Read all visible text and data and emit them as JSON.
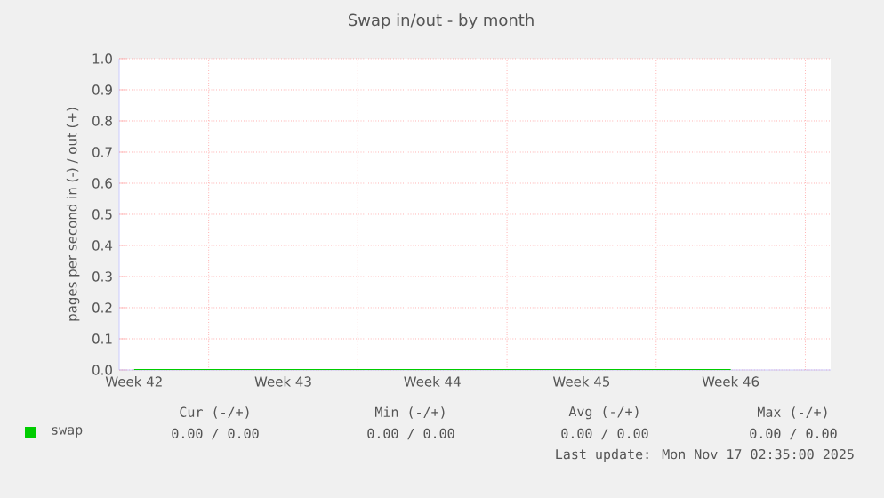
{
  "chart_data": {
    "type": "line",
    "title": "Swap in/out - by month",
    "ylabel": "pages per second in (-) / out (+)",
    "categories": [
      "Week 42",
      "Week 43",
      "Week 44",
      "Week 45",
      "Week 46"
    ],
    "ylim": [
      0,
      1.0
    ],
    "yticks": [
      {
        "value": 0,
        "label": "0.0"
      },
      {
        "value": 0.1,
        "label": "0.1"
      },
      {
        "value": 0.2,
        "label": "0.2"
      },
      {
        "value": 0.3,
        "label": "0.3"
      },
      {
        "value": 0.4,
        "label": "0.4"
      },
      {
        "value": 0.5,
        "label": "0.5"
      },
      {
        "value": 0.6,
        "label": "0.6"
      },
      {
        "value": 0.7,
        "label": "0.7"
      },
      {
        "value": 0.8,
        "label": "0.8"
      },
      {
        "value": 0.9,
        "label": "0.9"
      },
      {
        "value": 1.0,
        "label": "1.0"
      }
    ],
    "grid": true,
    "legend": "bottom",
    "line_style": "solid",
    "marker": "none",
    "series": [
      {
        "name": "swap",
        "color": "#00cc00",
        "values": [
          0,
          0,
          0,
          0,
          0
        ]
      }
    ],
    "annotations": [
      "Cur (-/+)",
      "Min (-/+)",
      "Avg (-/+)",
      "Max (-/+)",
      "0.00 /  0.00",
      "0.00 /  0.00",
      "0.00 /  0.00",
      "0.00 /  0.00",
      "Last update:  Mon Nov 17 02:35:00 2025"
    ]
  }
}
